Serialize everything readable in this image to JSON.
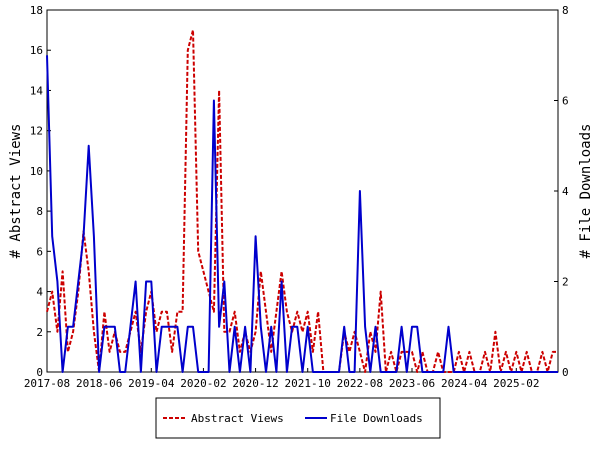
{
  "chart_data": {
    "type": "line",
    "title": "",
    "xlabel": "",
    "ylabel_left": "# Abstract Views",
    "ylabel_right": "# File Downloads",
    "ylim_left": [
      0,
      18
    ],
    "ylim_right": [
      0,
      8
    ],
    "yticks_left": [
      0,
      2,
      4,
      6,
      8,
      10,
      12,
      14,
      16,
      18
    ],
    "yticks_right": [
      0,
      2,
      4,
      6,
      8
    ],
    "x_start": "2017-08",
    "x_end": "2025-10",
    "xticks": [
      "2017-08",
      "2018-06",
      "2019-04",
      "2020-02",
      "2020-12",
      "2021-10",
      "2022-08",
      "2023-06",
      "2024-04",
      "2025-02"
    ],
    "grid": false,
    "legend_position": "bottom",
    "series": [
      {
        "name": "Abstract Views",
        "axis": "left",
        "color": "#cc0000",
        "style": "dashed",
        "x": [
          "2017-08",
          "2017-09",
          "2017-10",
          "2017-11",
          "2017-12",
          "2018-01",
          "2018-02",
          "2018-03",
          "2018-04",
          "2018-05",
          "2018-06",
          "2018-07",
          "2018-08",
          "2018-09",
          "2018-10",
          "2018-11",
          "2018-12",
          "2019-01",
          "2019-02",
          "2019-03",
          "2019-04",
          "2019-05",
          "2019-06",
          "2019-07",
          "2019-08",
          "2019-09",
          "2019-10",
          "2019-11",
          "2019-12",
          "2020-01",
          "2020-02",
          "2020-03",
          "2020-04",
          "2020-05",
          "2020-06",
          "2020-07",
          "2020-08",
          "2020-09",
          "2020-10",
          "2020-11",
          "2020-12",
          "2021-01",
          "2021-02",
          "2021-03",
          "2021-04",
          "2021-05",
          "2021-06",
          "2021-07",
          "2021-08",
          "2021-09",
          "2021-10",
          "2021-11",
          "2021-12",
          "2022-01",
          "2022-02",
          "2022-03",
          "2022-04",
          "2022-05",
          "2022-06",
          "2022-07",
          "2022-08",
          "2022-09",
          "2022-10",
          "2022-11",
          "2022-12",
          "2023-01",
          "2023-02",
          "2023-03",
          "2023-04",
          "2023-05",
          "2023-06",
          "2023-07",
          "2023-08",
          "2023-09",
          "2023-10",
          "2023-11",
          "2023-12",
          "2024-01",
          "2024-02",
          "2024-03",
          "2024-04",
          "2024-05",
          "2024-06",
          "2024-07",
          "2024-08",
          "2024-09",
          "2024-10",
          "2024-11",
          "2024-12",
          "2025-01",
          "2025-02",
          "2025-03",
          "2025-04",
          "2025-05",
          "2025-06",
          "2025-07",
          "2025-08",
          "2025-09",
          "2025-10"
        ],
        "values": [
          3,
          4,
          2,
          5,
          1,
          2,
          4,
          7,
          5,
          2,
          0,
          3,
          1,
          2,
          1,
          1,
          2,
          3,
          1,
          3,
          4,
          2,
          3,
          3,
          1,
          3,
          3,
          16,
          17,
          6,
          5,
          4,
          3,
          14,
          2,
          2,
          3,
          1,
          2,
          1,
          2,
          5,
          3,
          1,
          3,
          5,
          3,
          2,
          3,
          2,
          3,
          1,
          3,
          0,
          0,
          0,
          0,
          2,
          1,
          2,
          1,
          0,
          2,
          1,
          4,
          0,
          1,
          0,
          1,
          1,
          1,
          0,
          1,
          0,
          0,
          1,
          0,
          0,
          0,
          1,
          0,
          1,
          0,
          0,
          1,
          0,
          2,
          0,
          1,
          0,
          1,
          0,
          1,
          0,
          0,
          1,
          0,
          1,
          1
        ]
      },
      {
        "name": "File Downloads",
        "axis": "right",
        "color": "#0000cc",
        "style": "solid",
        "x": [
          "2017-08",
          "2017-09",
          "2017-10",
          "2017-11",
          "2017-12",
          "2018-01",
          "2018-02",
          "2018-03",
          "2018-04",
          "2018-05",
          "2018-06",
          "2018-07",
          "2018-08",
          "2018-09",
          "2018-10",
          "2018-11",
          "2018-12",
          "2019-01",
          "2019-02",
          "2019-03",
          "2019-04",
          "2019-05",
          "2019-06",
          "2019-07",
          "2019-08",
          "2019-09",
          "2019-10",
          "2019-11",
          "2019-12",
          "2020-01",
          "2020-02",
          "2020-03",
          "2020-04",
          "2020-05",
          "2020-06",
          "2020-07",
          "2020-08",
          "2020-09",
          "2020-10",
          "2020-11",
          "2020-12",
          "2021-01",
          "2021-02",
          "2021-03",
          "2021-04",
          "2021-05",
          "2021-06",
          "2021-07",
          "2021-08",
          "2021-09",
          "2021-10",
          "2021-11",
          "2021-12",
          "2022-01",
          "2022-02",
          "2022-03",
          "2022-04",
          "2022-05",
          "2022-06",
          "2022-07",
          "2022-08",
          "2022-09",
          "2022-10",
          "2022-11",
          "2022-12",
          "2023-01",
          "2023-02",
          "2023-03",
          "2023-04",
          "2023-05",
          "2023-06",
          "2023-07",
          "2023-08",
          "2023-09",
          "2023-10",
          "2023-11",
          "2023-12",
          "2024-01",
          "2024-02",
          "2024-03",
          "2024-04",
          "2024-05",
          "2024-06",
          "2024-07",
          "2024-08",
          "2024-09",
          "2024-10",
          "2024-11",
          "2024-12",
          "2025-01",
          "2025-02",
          "2025-03",
          "2025-04",
          "2025-05",
          "2025-06",
          "2025-07",
          "2025-08",
          "2025-09",
          "2025-10"
        ],
        "values": [
          7,
          3,
          2,
          0,
          1,
          1,
          2,
          3,
          5,
          3,
          0,
          1,
          1,
          1,
          0,
          0,
          1,
          2,
          0,
          2,
          2,
          0,
          1,
          1,
          1,
          1,
          0,
          1,
          1,
          0,
          0,
          0,
          6,
          1,
          2,
          0,
          1,
          0,
          1,
          0,
          3,
          1,
          0,
          1,
          0,
          2,
          0,
          1,
          1,
          0,
          1,
          0,
          0,
          0,
          0,
          0,
          0,
          1,
          0,
          0,
          4,
          1,
          0,
          1,
          0,
          0,
          0,
          0,
          1,
          0,
          1,
          1,
          0,
          0,
          0,
          0,
          0,
          1,
          0,
          0,
          0,
          0,
          0,
          0,
          0,
          0,
          0,
          0,
          0,
          0,
          0,
          0,
          0,
          0,
          0,
          0,
          0,
          0,
          0
        ]
      }
    ]
  }
}
